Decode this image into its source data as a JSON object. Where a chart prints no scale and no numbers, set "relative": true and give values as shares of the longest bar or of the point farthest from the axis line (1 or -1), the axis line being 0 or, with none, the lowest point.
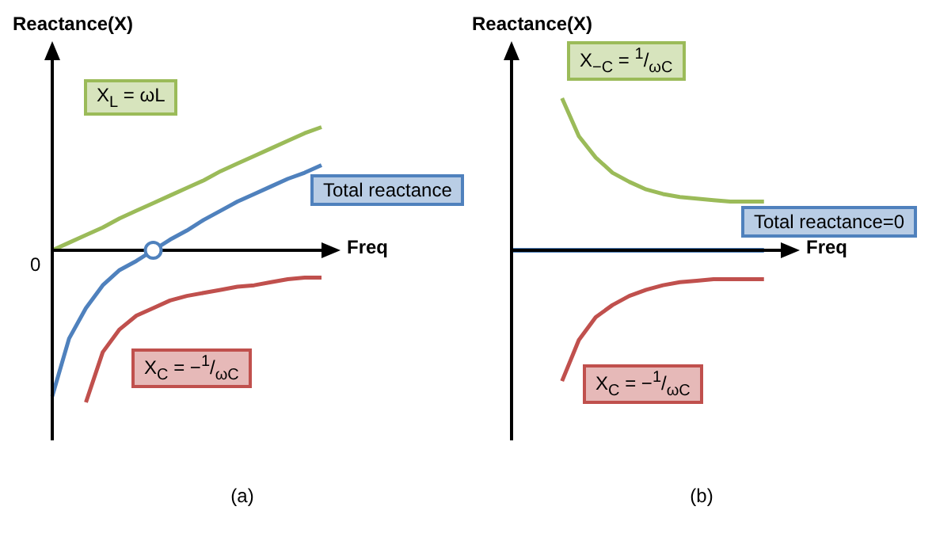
{
  "chart_data": [
    {
      "type": "line",
      "relative": true,
      "ylabel": "Reactance(X)",
      "xlabel": "Freq",
      "title": "(a)",
      "annotations": [
        "0"
      ],
      "categories": [
        null,
        null,
        null,
        null,
        null,
        null,
        null,
        null,
        null,
        null,
        null,
        null,
        null,
        null,
        null,
        null,
        null
      ],
      "series": [
        {
          "name": "X$_{L}$ = ωL",
          "color": "#9bbb59",
          "values": [
            0,
            0.05,
            0.1,
            0.15,
            0.21,
            0.26,
            0.31,
            0.36,
            0.41,
            0.46,
            0.52,
            0.57,
            0.62,
            0.67,
            0.72,
            0.77,
            0.81
          ]
        },
        {
          "name": "Total reactance",
          "color": "#4f81bd",
          "values": [
            -0.96,
            -0.58,
            -0.38,
            -0.23,
            -0.13,
            -0.07,
            0,
            0.07,
            0.13,
            0.2,
            0.26,
            0.32,
            0.37,
            0.42,
            0.47,
            0.51,
            0.56
          ]
        },
        {
          "name": "X$_{C}$ = −$^{1}$/$_{ωC}$",
          "color": "#c0504d",
          "values": [
            null,
            null,
            -1.0,
            -0.67,
            -0.52,
            -0.43,
            -0.38,
            -0.33,
            -0.3,
            -0.28,
            -0.26,
            -0.24,
            -0.23,
            -0.21,
            -0.19,
            -0.18,
            -0.18
          ]
        }
      ]
    },
    {
      "type": "line",
      "relative": true,
      "ylabel": "Reactance(X)",
      "xlabel": "Freq",
      "title": "(b)",
      "categories": [
        null,
        null,
        null,
        null,
        null,
        null,
        null,
        null,
        null,
        null,
        null,
        null,
        null,
        null,
        null,
        null,
        null
      ],
      "series": [
        {
          "name": "X$_{−C}$ = $^{1}$/$_{ωC}$",
          "color": "#9bbb59",
          "values": [
            null,
            null,
            null,
            1.0,
            0.75,
            0.61,
            0.51,
            0.45,
            0.4,
            0.37,
            0.35,
            0.34,
            0.33,
            0.32,
            0.32,
            0.32,
            null
          ]
        },
        {
          "name": "Total reactance=0",
          "color": "#4f81bd",
          "values": [
            0,
            0,
            0,
            0,
            0,
            0,
            0,
            0,
            0,
            0,
            0,
            0,
            0,
            0,
            0,
            0,
            null
          ]
        },
        {
          "name": "X$_{C}$ = −$^{1}$/$_{ωC}$",
          "color": "#c0504d",
          "values": [
            null,
            null,
            null,
            -0.86,
            -0.59,
            -0.44,
            -0.36,
            -0.3,
            -0.26,
            -0.23,
            -0.21,
            -0.2,
            -0.19,
            -0.19,
            -0.19,
            -0.19,
            null
          ]
        }
      ]
    }
  ]
}
